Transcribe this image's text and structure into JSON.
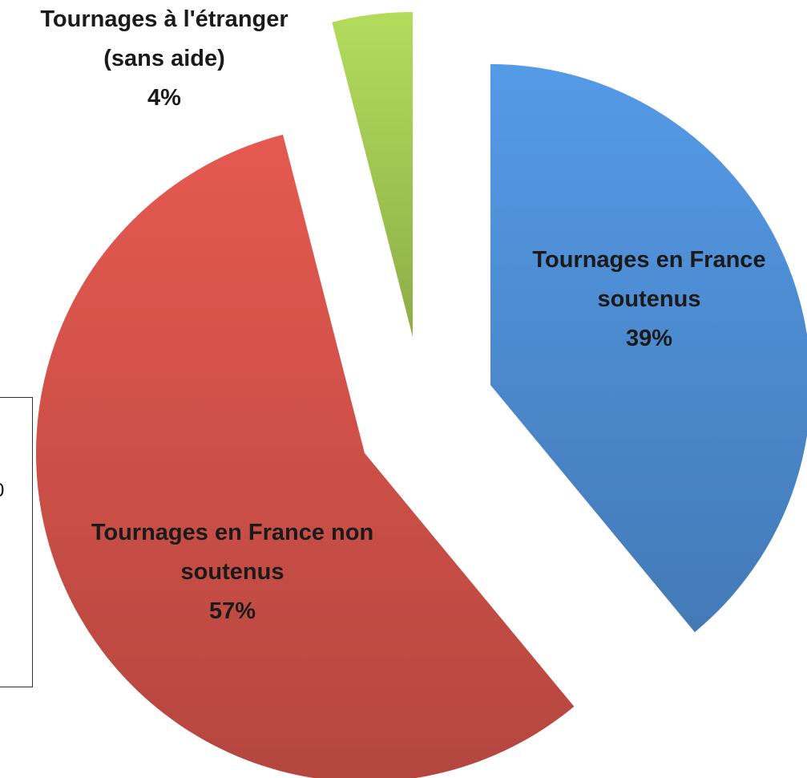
{
  "chart_data": {
    "type": "pie",
    "categories": [
      "Tournages en France soutenus",
      "Tournages en France non soutenus",
      "Tournages à l'étranger (sans aide)"
    ],
    "values": [
      39,
      57,
      4
    ],
    "value_labels": [
      "39%",
      "57%",
      "4%"
    ],
    "colors": [
      "#4f8fd6",
      "#d4524a",
      "#a6cc55"
    ],
    "exploded": true
  },
  "fragment": {
    "text": "0"
  }
}
